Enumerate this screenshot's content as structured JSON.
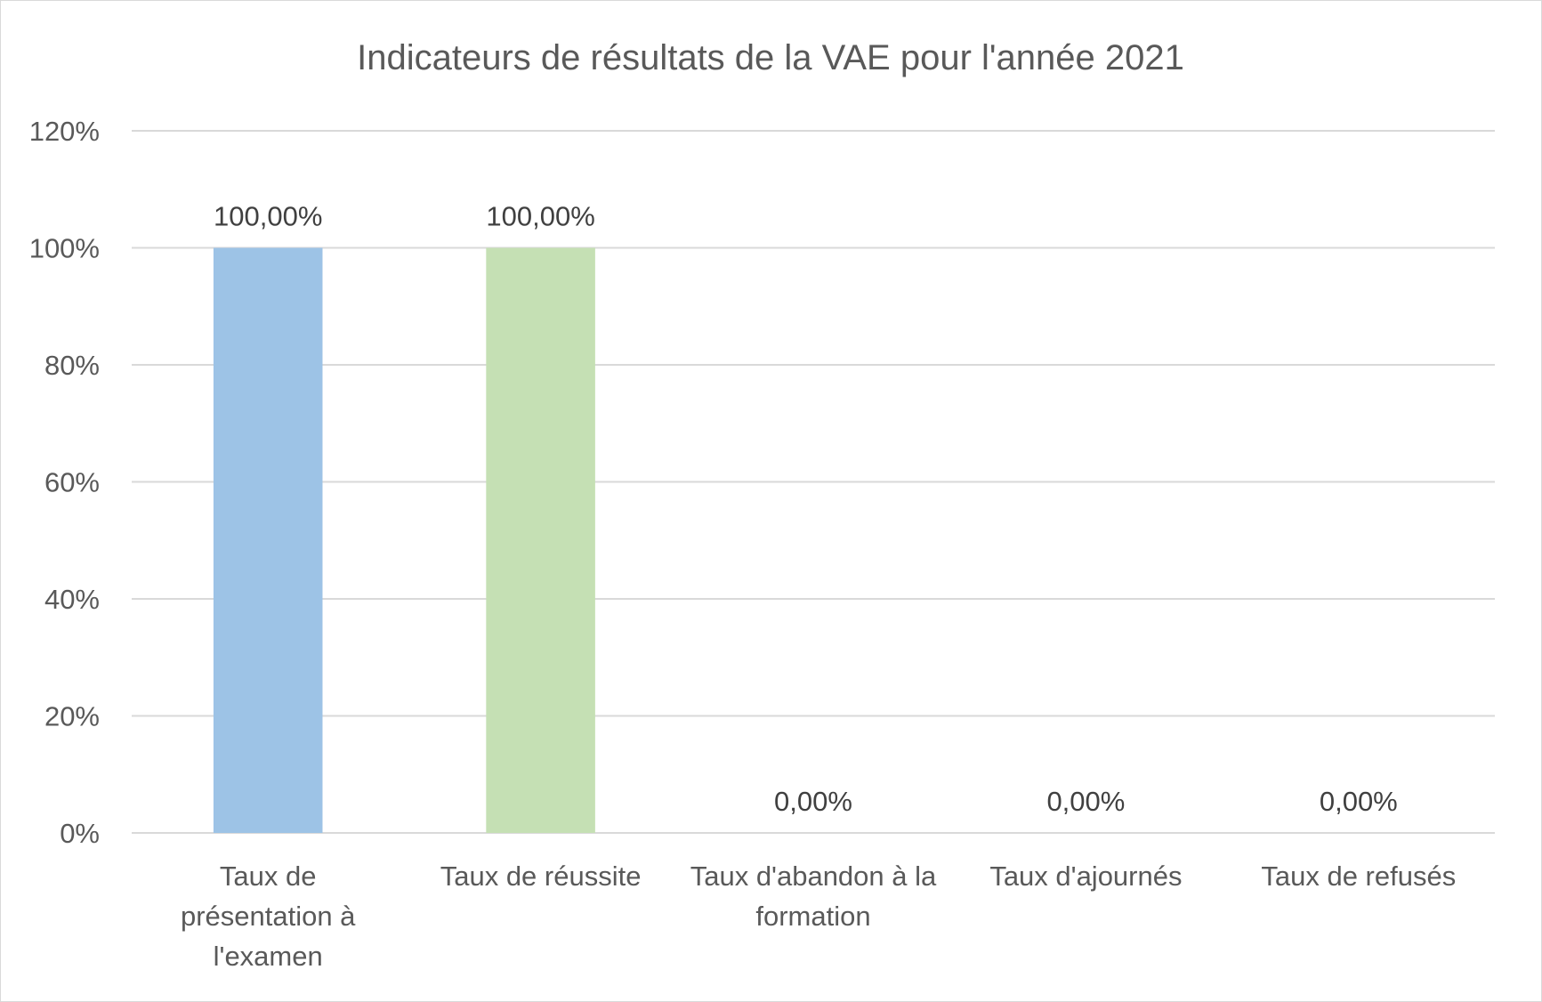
{
  "chart_data": {
    "type": "bar",
    "title": "Indicateurs de résultats de la VAE pour l'année 2021",
    "xlabel": "",
    "ylabel": "",
    "categories": [
      "Taux de présentation à l'examen",
      "Taux de réussite",
      "Taux d'abandon à la formation",
      "Taux d'ajournés",
      "Taux de refusés"
    ],
    "category_lines": [
      [
        "Taux de",
        "présentation à",
        "l'examen"
      ],
      [
        "Taux de réussite"
      ],
      [
        "Taux d'abandon à la",
        "formation"
      ],
      [
        "Taux d'ajournés"
      ],
      [
        "Taux de refusés"
      ]
    ],
    "values": [
      1.0,
      1.0,
      0.0,
      0.0,
      0.0
    ],
    "data_labels": [
      "100,00%",
      "100,00%",
      "0,00%",
      "0,00%",
      "0,00%"
    ],
    "bar_colors": [
      "#9dc3e6",
      "#c5e0b4",
      "#9dc3e6",
      "#9dc3e6",
      "#9dc3e6"
    ],
    "ylim": [
      0,
      1.2
    ],
    "yticks": [
      0,
      0.2,
      0.4,
      0.6,
      0.8,
      1.0,
      1.2
    ],
    "ytick_labels": [
      "0%",
      "20%",
      "40%",
      "60%",
      "80%",
      "100%",
      "120%"
    ],
    "grid": true,
    "legend": "none",
    "colors": {
      "gridline": "#d9d9d9",
      "text": "#595959",
      "data_label": "#404040"
    }
  }
}
